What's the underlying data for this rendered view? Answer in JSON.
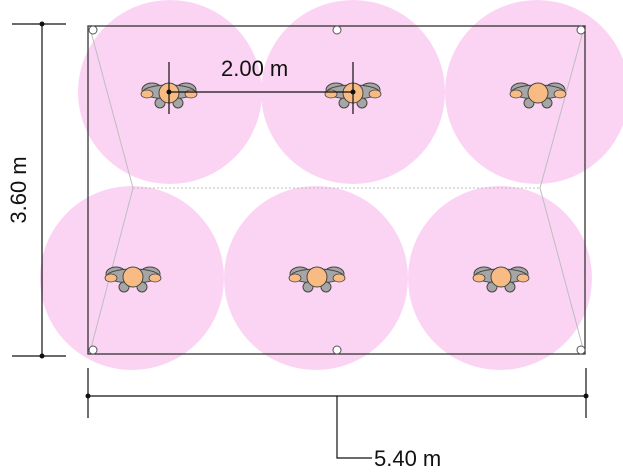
{
  "diagram": {
    "width_label": "5.40 m",
    "height_label": "3.60 m",
    "spacing_label": "2.00 m",
    "room_width_m": 5.4,
    "room_depth_m": 3.6,
    "person_spacing_m": 2.0,
    "people_count": 6,
    "colors": {
      "distancing_circle": "#fbd4f4",
      "person_head": "#f8bb84",
      "person_shoulders": "#a6a6a6",
      "outline": "#333333",
      "dimension_line": "#111111"
    },
    "icons": {
      "person": "person-top-view-icon",
      "corner": "corner-marker-icon"
    }
  }
}
